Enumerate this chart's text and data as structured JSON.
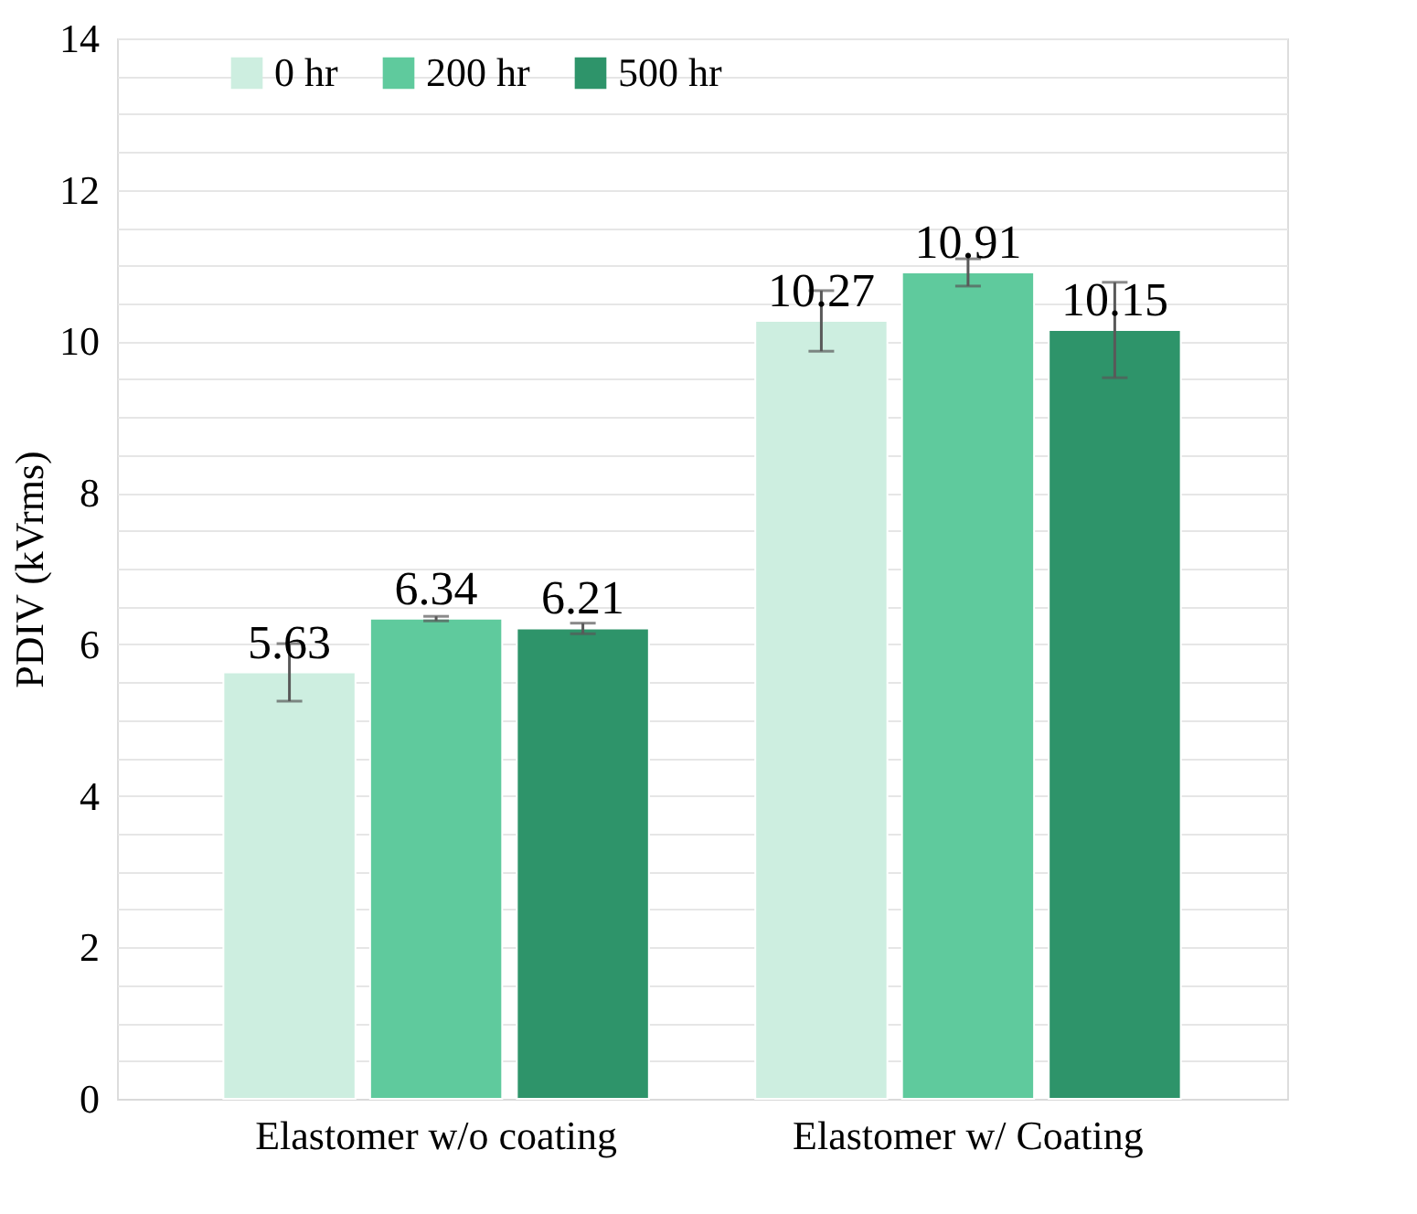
{
  "chart_data": {
    "type": "bar",
    "ylabel": "PDIV (kVrms)",
    "categories": [
      "Elastomer w/o coating",
      "Elastomer w/ Coating"
    ],
    "series": [
      {
        "name": "0 hr",
        "color": "#cdeee0",
        "values": [
          5.63,
          10.27
        ],
        "errors": [
          0.38,
          0.4
        ]
      },
      {
        "name": "200 hr",
        "color": "#5fca9d",
        "values": [
          6.34,
          10.91
        ],
        "errors": [
          0.03,
          0.18
        ]
      },
      {
        "name": "500 hr",
        "color": "#2e946a",
        "values": [
          6.21,
          10.15
        ],
        "errors": [
          0.07,
          0.63
        ]
      }
    ],
    "ylim": [
      0,
      14
    ],
    "yticks": [
      0,
      {
        "value": 0.5,
        "label": null
      },
      {
        "value": 1,
        "label": null
      },
      {
        "value": 1.5,
        "label": null
      },
      2,
      {
        "value": 2.5,
        "label": null
      },
      {
        "value": 3,
        "label": null
      },
      {
        "value": 3.5,
        "label": null
      },
      4,
      {
        "value": 4.5,
        "label": null
      },
      {
        "value": 5,
        "label": null
      },
      {
        "value": 5.5,
        "label": null
      },
      6,
      {
        "value": 6.5,
        "label": null
      },
      {
        "value": 7,
        "label": null
      },
      {
        "value": 7.5,
        "label": null
      },
      8,
      {
        "value": 8.5,
        "label": null
      },
      {
        "value": 9,
        "label": null
      },
      {
        "value": 9.5,
        "label": null
      },
      10,
      {
        "value": 10.5,
        "label": null
      },
      {
        "value": 11,
        "label": null
      },
      {
        "value": 11.5,
        "label": null
      },
      12,
      {
        "value": 12.5,
        "label": null
      },
      {
        "value": 13,
        "label": null
      },
      {
        "value": 13.5,
        "label": null
      },
      14
    ],
    "grid": "y",
    "legend": "top",
    "data_labels": true
  }
}
